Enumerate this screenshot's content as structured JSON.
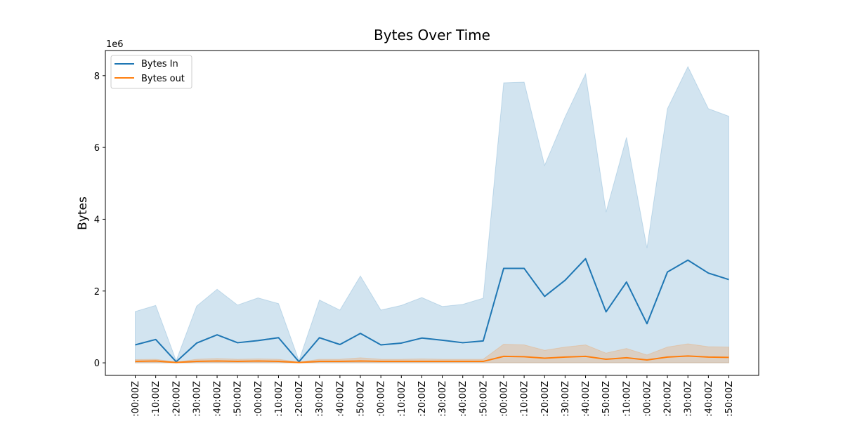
{
  "chart_data": {
    "type": "line",
    "title": "Bytes Over Time",
    "xlabel": "",
    "ylabel": "Bytes",
    "y_scale_label": "1e6",
    "ylim": [
      -0.35,
      8.7
    ],
    "yticks": [
      0,
      2,
      4,
      6,
      8
    ],
    "grid": false,
    "legend_placement": "top-left",
    "x_tick_labels": [
      ":00:00Z",
      ":10:00Z",
      ":20:00Z",
      ":30:00Z",
      ":40:00Z",
      ":50:00Z",
      ":00:00Z",
      ":10:00Z",
      ":20:00Z",
      ":30:00Z",
      ":40:00Z",
      ":50:00Z",
      ":00:00Z",
      ":10:00Z",
      ":20:00Z",
      ":30:00Z",
      ":40:00Z",
      ":50:00Z",
      ":00:00Z",
      ":10:00Z",
      ":20:00Z",
      ":30:00Z",
      ":40:00Z",
      ":50:00Z",
      ":10:00Z",
      ":00:00Z",
      ":20:00Z",
      ":30:00Z",
      ":40:00Z",
      ":50:00Z"
    ],
    "series": [
      {
        "name": "Bytes In",
        "color": "#1f77b4",
        "band_color": "#1f77b4",
        "values": [
          0.5,
          0.65,
          0.03,
          0.55,
          0.78,
          0.56,
          0.62,
          0.7,
          0.03,
          0.7,
          0.51,
          0.82,
          0.5,
          0.55,
          0.69,
          0.63,
          0.56,
          0.61,
          2.63,
          2.63,
          1.85,
          2.3,
          2.9,
          1.42,
          2.25,
          1.09,
          2.53,
          2.86,
          2.5,
          2.32
        ],
        "band_upper": [
          1.43,
          1.6,
          0.06,
          1.58,
          2.05,
          1.61,
          1.81,
          1.65,
          0.06,
          1.75,
          1.47,
          2.42,
          1.47,
          1.6,
          1.82,
          1.57,
          1.63,
          1.8,
          7.8,
          7.82,
          5.5,
          6.85,
          8.05,
          4.2,
          6.28,
          3.2,
          7.08,
          8.25,
          7.08,
          6.87
        ],
        "band_lower": [
          0,
          0,
          0,
          0,
          0,
          0,
          0,
          0,
          0,
          0,
          0,
          0,
          0,
          0,
          0,
          0,
          0,
          0,
          0,
          0,
          0,
          0,
          0,
          0,
          0,
          0,
          0,
          0,
          0,
          0
        ]
      },
      {
        "name": "Bytes out",
        "color": "#ff7f0e",
        "band_color": "#ff7f0e",
        "values": [
          0.04,
          0.05,
          0.01,
          0.04,
          0.05,
          0.04,
          0.05,
          0.04,
          0.01,
          0.04,
          0.04,
          0.05,
          0.04,
          0.04,
          0.04,
          0.04,
          0.04,
          0.04,
          0.18,
          0.17,
          0.13,
          0.16,
          0.18,
          0.1,
          0.14,
          0.08,
          0.16,
          0.19,
          0.16,
          0.15
        ],
        "band_upper": [
          0.09,
          0.1,
          0.02,
          0.1,
          0.12,
          0.1,
          0.11,
          0.1,
          0.02,
          0.1,
          0.1,
          0.14,
          0.1,
          0.1,
          0.11,
          0.1,
          0.1,
          0.1,
          0.52,
          0.5,
          0.35,
          0.44,
          0.5,
          0.27,
          0.4,
          0.22,
          0.44,
          0.53,
          0.45,
          0.44
        ],
        "band_lower": [
          0,
          0,
          0,
          0,
          0,
          0,
          0,
          0,
          0,
          0,
          0,
          0,
          0,
          0,
          0,
          0,
          0,
          0,
          0,
          0,
          0,
          0,
          0,
          0,
          0,
          0,
          0,
          0,
          0,
          0
        ]
      }
    ]
  }
}
